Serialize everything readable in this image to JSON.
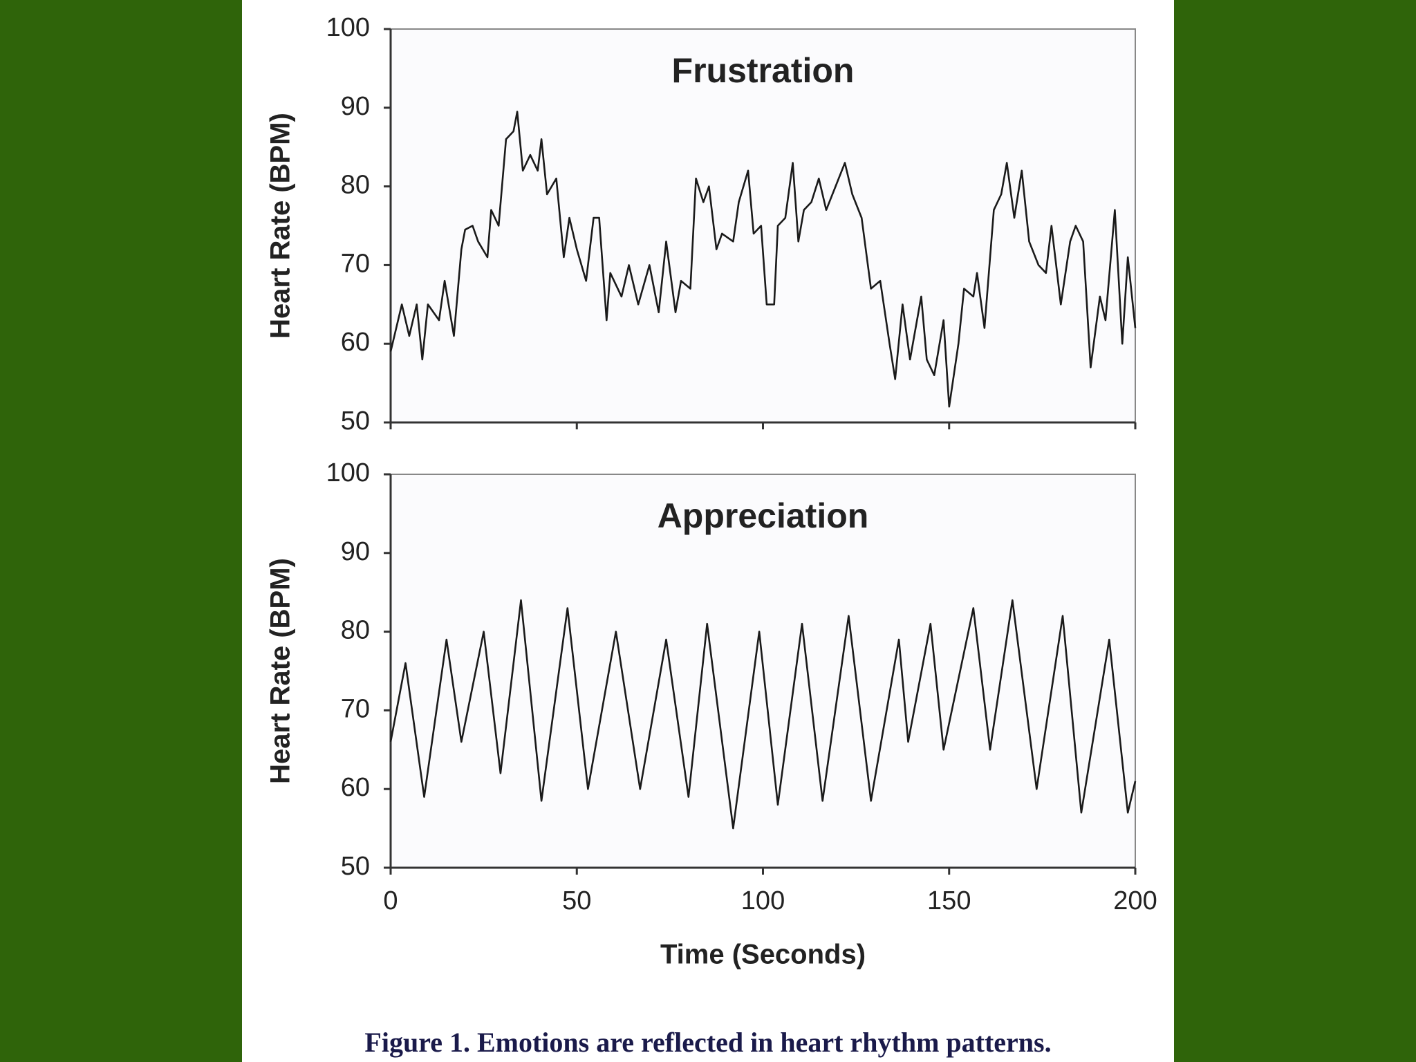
{
  "chart_data": [
    {
      "type": "line",
      "title": "Frustration",
      "ylabel": "Heart Rate (BPM)",
      "x": [
        0,
        3,
        5,
        7,
        8.5,
        10,
        13,
        14.5,
        17,
        19,
        20,
        22,
        23.5,
        26,
        27,
        29,
        31,
        33,
        34,
        35.5,
        37.5,
        39.5,
        40.5,
        42,
        44.5,
        46.5,
        48,
        50,
        52.5,
        54.5,
        56,
        58,
        59,
        62,
        64,
        66.5,
        69.5,
        72,
        74,
        76.5,
        78,
        80.5,
        82,
        84,
        85.5,
        87.5,
        89,
        92,
        93.5,
        96,
        97.5,
        99.5,
        101,
        103,
        104,
        106,
        108,
        109.5,
        111,
        113,
        115,
        117,
        119.5,
        122,
        124,
        126.5,
        129,
        131.5,
        134,
        135.5,
        137.5,
        139.5,
        142.5,
        144,
        146,
        148.5,
        150,
        152.5,
        154,
        156.5,
        157.5,
        159.5,
        162,
        164,
        165.5,
        167.5,
        169.5,
        171.5,
        174,
        176,
        177.5,
        180,
        182.5,
        184,
        186,
        188,
        190.5,
        192,
        194.5,
        196.5,
        198,
        200
      ],
      "series": [
        {
          "name": "Frustration",
          "color": "#1a1a1a",
          "values": [
            59,
            65,
            61,
            65,
            58,
            65,
            63,
            68,
            61,
            72,
            74.5,
            75,
            73,
            71,
            77,
            75,
            86,
            87,
            89.5,
            82,
            84,
            82,
            86,
            79,
            81,
            71,
            76,
            72,
            68,
            76,
            76,
            63,
            69,
            66,
            70,
            65,
            70,
            64,
            73,
            64,
            68,
            67,
            81,
            78,
            80,
            72,
            74,
            73,
            78,
            82,
            74,
            75,
            65,
            65,
            75,
            76,
            83,
            73,
            77,
            78,
            81,
            77,
            80,
            83,
            79,
            76,
            67,
            68,
            60,
            55.5,
            65,
            58,
            66,
            58,
            56,
            63,
            52,
            60,
            67,
            66,
            69,
            62,
            77,
            79,
            83,
            76,
            82,
            73,
            70,
            69,
            75,
            65,
            73,
            75,
            73,
            57,
            66,
            63,
            77,
            60,
            71,
            62
          ]
        }
      ],
      "xlim": [
        0,
        200
      ],
      "xticks": [
        0,
        50,
        100,
        150,
        200
      ],
      "ylim": [
        50,
        100
      ],
      "yticks": [
        50,
        60,
        70,
        80,
        90,
        100
      ]
    },
    {
      "type": "line",
      "title": "Appreciation",
      "ylabel": "Heart Rate (BPM)",
      "xlabel": "Time (Seconds)",
      "x": [
        0,
        4,
        9,
        15,
        19,
        25,
        29.5,
        35,
        40.5,
        47.5,
        53,
        60.5,
        67,
        74,
        80,
        85,
        92,
        99,
        104,
        110.5,
        116,
        123,
        129,
        136.5,
        139,
        145,
        148.5,
        156.5,
        161,
        167,
        173.5,
        180.5,
        185.5,
        193,
        198,
        200
      ],
      "series": [
        {
          "name": "Appreciation",
          "color": "#1a1a1a",
          "values": [
            66,
            76,
            59,
            79,
            66,
            80,
            62,
            84,
            58.5,
            83,
            60,
            80,
            60,
            79,
            59,
            81,
            55,
            80,
            58,
            81,
            58.5,
            82,
            58.5,
            79,
            66,
            81,
            65,
            83,
            65,
            84,
            60,
            82,
            57,
            79,
            57,
            61
          ]
        }
      ],
      "xlim": [
        0,
        200
      ],
      "xticks": [
        0,
        50,
        100,
        150,
        200
      ],
      "ylim": [
        50,
        100
      ],
      "yticks": [
        50,
        60,
        70,
        80,
        90,
        100
      ]
    }
  ],
  "caption": "Figure 1. Emotions are reflected in heart rhythm patterns."
}
